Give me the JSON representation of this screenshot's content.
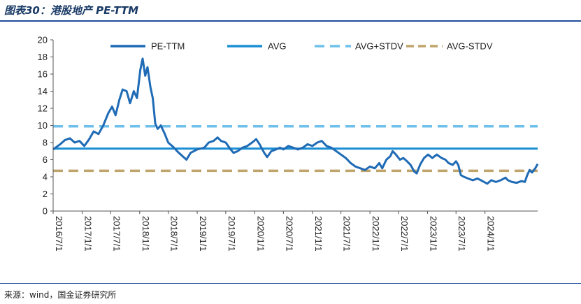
{
  "header": {
    "title": "图表30：港股地产 PE-TTM"
  },
  "footer": {
    "source": "来源：wind，国金证券研究所"
  },
  "chart_data": {
    "type": "line",
    "title": "",
    "ylim": [
      0,
      20
    ],
    "yticks": [
      0,
      2,
      4,
      6,
      8,
      10,
      12,
      14,
      16,
      18,
      20
    ],
    "xlim": [
      "2016/7/1",
      "2024/11/30"
    ],
    "xticks": [
      "2016/7/1",
      "2017/1/1",
      "2017/7/1",
      "2018/1/1",
      "2018/7/1",
      "2019/1/1",
      "2019/7/1",
      "2020/1/1",
      "2020/7/1",
      "2021/1/1",
      "2021/7/1",
      "2022/1/1",
      "2022/7/1",
      "2023/1/1",
      "2023/7/1",
      "2024/1/1"
    ],
    "legend_position": "top",
    "grid": false,
    "series": [
      {
        "name": "PE-TTM",
        "style": "solid",
        "color": "#1f6bb5",
        "points": [
          [
            "2016/7/1",
            7.2
          ],
          [
            "2016/8/15",
            7.8
          ],
          [
            "2016/9/15",
            8.3
          ],
          [
            "2016/10/15",
            8.5
          ],
          [
            "2016/11/15",
            8.0
          ],
          [
            "2016/12/15",
            8.2
          ],
          [
            "2017/1/15",
            7.6
          ],
          [
            "2017/2/15",
            8.4
          ],
          [
            "2017/3/15",
            9.3
          ],
          [
            "2017/4/15",
            9.0
          ],
          [
            "2017/5/15",
            10.0
          ],
          [
            "2017/6/15",
            11.4
          ],
          [
            "2017/7/10",
            12.2
          ],
          [
            "2017/8/1",
            11.2
          ],
          [
            "2017/8/25",
            13.0
          ],
          [
            "2017/9/15",
            14.2
          ],
          [
            "2017/10/10",
            14.0
          ],
          [
            "2017/11/1",
            12.6
          ],
          [
            "2017/11/25",
            14.0
          ],
          [
            "2017/12/15",
            13.2
          ],
          [
            "2018/1/5",
            16.5
          ],
          [
            "2018/1/20",
            17.8
          ],
          [
            "2018/2/5",
            15.8
          ],
          [
            "2018/2/20",
            16.8
          ],
          [
            "2018/3/10",
            14.5
          ],
          [
            "2018/3/25",
            13.2
          ],
          [
            "2018/4/10",
            10.2
          ],
          [
            "2018/4/25",
            9.6
          ],
          [
            "2018/5/15",
            10.0
          ],
          [
            "2018/6/10",
            9.0
          ],
          [
            "2018/7/1",
            8.0
          ],
          [
            "2018/8/1",
            7.5
          ],
          [
            "2018/9/1",
            6.9
          ],
          [
            "2018/10/1",
            6.4
          ],
          [
            "2018/10/25",
            6.0
          ],
          [
            "2018/11/20",
            6.8
          ],
          [
            "2019/1/1",
            7.2
          ],
          [
            "2019/2/15",
            7.4
          ],
          [
            "2019/3/15",
            8.0
          ],
          [
            "2019/4/15",
            8.2
          ],
          [
            "2019/5/10",
            8.6
          ],
          [
            "2019/6/1",
            8.2
          ],
          [
            "2019/7/1",
            8.0
          ],
          [
            "2019/8/1",
            7.2
          ],
          [
            "2019/8/20",
            6.8
          ],
          [
            "2019/9/15",
            7.0
          ],
          [
            "2019/10/15",
            7.4
          ],
          [
            "2019/11/15",
            7.6
          ],
          [
            "2019/12/15",
            8.0
          ],
          [
            "2020/1/10",
            8.4
          ],
          [
            "2020/2/1",
            7.8
          ],
          [
            "2020/3/1",
            6.8
          ],
          [
            "2020/3/20",
            6.3
          ],
          [
            "2020/4/15",
            7.0
          ],
          [
            "2020/5/15",
            7.2
          ],
          [
            "2020/6/10",
            7.4
          ],
          [
            "2020/7/1",
            7.2
          ],
          [
            "2020/8/1",
            7.6
          ],
          [
            "2020/9/1",
            7.4
          ],
          [
            "2020/10/1",
            7.2
          ],
          [
            "2020/11/1",
            7.4
          ],
          [
            "2020/12/1",
            7.8
          ],
          [
            "2021/1/1",
            7.6
          ],
          [
            "2021/2/1",
            8.0
          ],
          [
            "2021/3/1",
            8.2
          ],
          [
            "2021/4/1",
            7.6
          ],
          [
            "2021/5/1",
            7.4
          ],
          [
            "2021/6/1",
            7.0
          ],
          [
            "2021/7/1",
            6.6
          ],
          [
            "2021/8/1",
            6.2
          ],
          [
            "2021/9/1",
            5.6
          ],
          [
            "2021/10/1",
            5.2
          ],
          [
            "2021/11/1",
            5.0
          ],
          [
            "2021/12/1",
            4.8
          ],
          [
            "2022/1/1",
            5.2
          ],
          [
            "2022/2/1",
            5.0
          ],
          [
            "2022/3/1",
            5.6
          ],
          [
            "2022/3/20",
            5.0
          ],
          [
            "2022/4/15",
            6.0
          ],
          [
            "2022/5/10",
            6.4
          ],
          [
            "2022/5/25",
            7.0
          ],
          [
            "2022/6/15",
            6.6
          ],
          [
            "2022/7/10",
            6.0
          ],
          [
            "2022/8/1",
            6.2
          ],
          [
            "2022/8/25",
            5.8
          ],
          [
            "2022/9/15",
            5.4
          ],
          [
            "2022/10/10",
            4.6
          ],
          [
            "2022/10/25",
            4.4
          ],
          [
            "2022/11/15",
            5.4
          ],
          [
            "2022/12/10",
            6.2
          ],
          [
            "2023/1/5",
            6.6
          ],
          [
            "2023/2/1",
            6.2
          ],
          [
            "2023/3/1",
            6.6
          ],
          [
            "2023/4/1",
            6.2
          ],
          [
            "2023/4/25",
            6.0
          ],
          [
            "2023/5/15",
            5.6
          ],
          [
            "2023/6/10",
            5.4
          ],
          [
            "2023/7/1",
            5.8
          ],
          [
            "2023/7/15",
            5.4
          ],
          [
            "2023/8/1",
            4.2
          ],
          [
            "2023/8/20",
            4.0
          ],
          [
            "2023/9/15",
            3.8
          ],
          [
            "2023/10/15",
            3.6
          ],
          [
            "2023/11/15",
            3.8
          ],
          [
            "2023/12/15",
            3.5
          ],
          [
            "2024/1/15",
            3.2
          ],
          [
            "2024/2/10",
            3.6
          ],
          [
            "2024/3/10",
            3.4
          ],
          [
            "2024/4/10",
            3.6
          ],
          [
            "2024/5/10",
            3.9
          ],
          [
            "2024/5/25",
            3.6
          ],
          [
            "2024/6/20",
            3.4
          ],
          [
            "2024/7/20",
            3.3
          ],
          [
            "2024/8/20",
            3.5
          ],
          [
            "2024/9/10",
            3.4
          ],
          [
            "2024/9/25",
            4.2
          ],
          [
            "2024/10/10",
            4.8
          ],
          [
            "2024/10/25",
            4.5
          ],
          [
            "2024/11/15",
            5.0
          ],
          [
            "2024/11/30",
            5.5
          ]
        ]
      },
      {
        "name": "AVG",
        "style": "solid",
        "color": "#1c8fd4",
        "value": 7.3
      },
      {
        "name": "AVG+STDV",
        "style": "dashed",
        "color": "#6fc0ea",
        "value": 9.9
      },
      {
        "name": "AVG-STDV",
        "style": "dashed",
        "color": "#bfa46b",
        "value": 4.7
      }
    ]
  }
}
